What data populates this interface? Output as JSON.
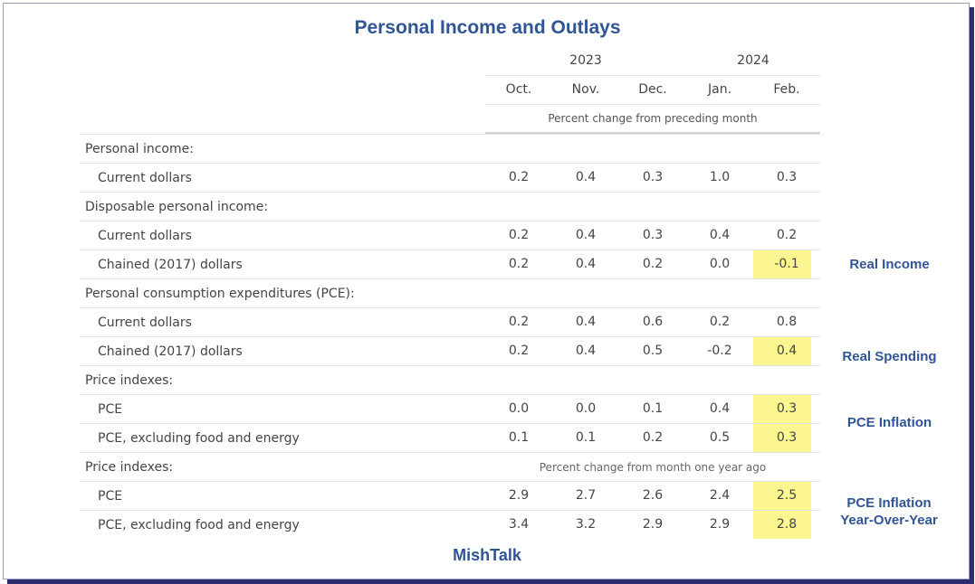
{
  "title": "Personal Income and Outlays",
  "footer": "MishTalk",
  "colors": {
    "highlight": "#fbf68f",
    "accent": "#2f5597",
    "frame_shadow": "#2b2d6e"
  },
  "chart_data": {
    "type": "table",
    "title": "Personal Income and Outlays",
    "years": [
      {
        "label": "2023",
        "months": [
          "Oct.",
          "Nov.",
          "Dec."
        ]
      },
      {
        "label": "2024",
        "months": [
          "Jan.",
          "Feb."
        ]
      }
    ],
    "columns": [
      "Oct.",
      "Nov.",
      "Dec.",
      "Jan.",
      "Feb."
    ],
    "unit_note_1": "Percent change from preceding month",
    "unit_note_2": "Percent change from month one year ago",
    "rows": [
      {
        "label": "Personal income:",
        "type": "section"
      },
      {
        "label": "Current dollars",
        "type": "sub",
        "values": [
          "0.2",
          "0.4",
          "0.3",
          "1.0",
          "0.3"
        ]
      },
      {
        "label": "Disposable personal income:",
        "type": "section"
      },
      {
        "label": "Current dollars",
        "type": "sub",
        "values": [
          "0.2",
          "0.4",
          "0.3",
          "0.4",
          "0.2"
        ]
      },
      {
        "label": "Chained (2017) dollars",
        "type": "sub",
        "values": [
          "0.2",
          "0.4",
          "0.2",
          "0.0",
          "-0.1"
        ],
        "highlight_last": true,
        "note": "Real Income"
      },
      {
        "label": "Personal consumption expenditures (PCE):",
        "type": "section"
      },
      {
        "label": "Current dollars",
        "type": "sub",
        "values": [
          "0.2",
          "0.4",
          "0.6",
          "0.2",
          "0.8"
        ]
      },
      {
        "label": "Chained (2017) dollars",
        "type": "sub",
        "values": [
          "0.2",
          "0.4",
          "0.5",
          "-0.2",
          "0.4"
        ],
        "highlight_last": true,
        "note": "Real Spending"
      },
      {
        "label": "Price indexes:",
        "type": "section"
      },
      {
        "label": "PCE",
        "type": "sub",
        "values": [
          "0.0",
          "0.0",
          "0.1",
          "0.4",
          "0.3"
        ],
        "highlight_last": true
      },
      {
        "label": "PCE, excluding food and energy",
        "type": "sub",
        "values": [
          "0.1",
          "0.1",
          "0.2",
          "0.5",
          "0.3"
        ],
        "highlight_last": true
      },
      {
        "label": "Price indexes:",
        "type": "section",
        "span_note": true
      },
      {
        "label": "PCE",
        "type": "sub",
        "values": [
          "2.9",
          "2.7",
          "2.6",
          "2.4",
          "2.5"
        ],
        "highlight_last": true
      },
      {
        "label": "PCE, excluding food and energy",
        "type": "sub",
        "values": [
          "3.4",
          "3.2",
          "2.9",
          "2.9",
          "2.8"
        ],
        "highlight_last": true
      }
    ],
    "annotations": [
      "Real Income",
      "Real Spending",
      "PCE Inflation",
      "PCE Inflation Year-Over-Year"
    ]
  }
}
